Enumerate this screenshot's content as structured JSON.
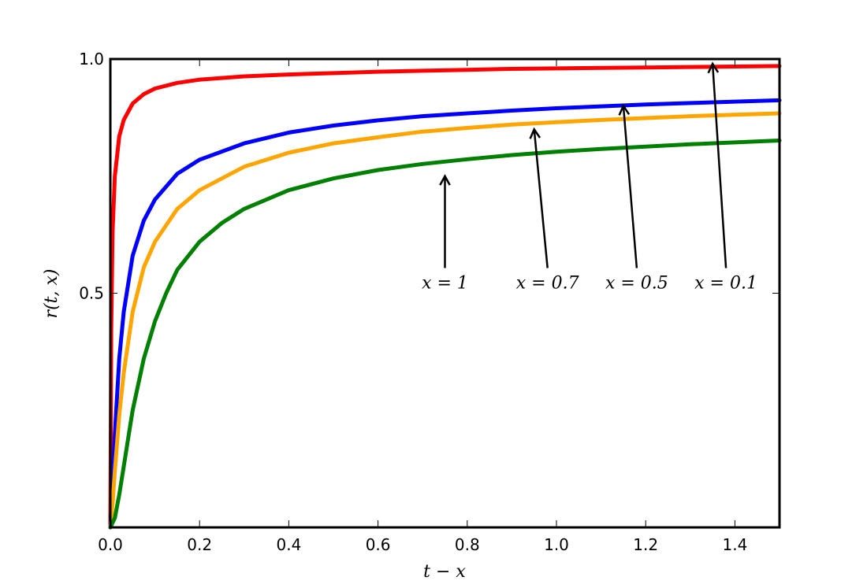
{
  "chart_data": {
    "type": "line",
    "title": "",
    "xlabel": "t − x",
    "ylabel": "r(t, x)",
    "xlim": [
      0.0,
      1.5
    ],
    "ylim": [
      0.0,
      1.0
    ],
    "xticks": [
      "0.0",
      "0.2",
      "0.4",
      "0.6",
      "0.8",
      "1.0",
      "1.2",
      "1.4"
    ],
    "yticks": [
      "0.5",
      "1.0"
    ],
    "grid": false,
    "series": [
      {
        "color": "#ff0000",
        "x": [
          0.0,
          0.002,
          0.005,
          0.01,
          0.02,
          0.03,
          0.05,
          0.075,
          0.1,
          0.15,
          0.2,
          0.3,
          0.4,
          0.5,
          0.6,
          0.7,
          0.8,
          0.9,
          1.0,
          1.1,
          1.2,
          1.3,
          1.4,
          1.5
        ],
        "values": [
          0.0,
          0.42,
          0.63,
          0.75,
          0.835,
          0.87,
          0.905,
          0.925,
          0.937,
          0.949,
          0.956,
          0.963,
          0.967,
          0.97,
          0.973,
          0.975,
          0.977,
          0.979,
          0.98,
          0.981,
          0.982,
          0.983,
          0.984,
          0.985
        ]
      },
      {
        "color": "#0000ff",
        "x": [
          0.0,
          0.005,
          0.01,
          0.02,
          0.03,
          0.05,
          0.075,
          0.1,
          0.15,
          0.2,
          0.3,
          0.4,
          0.5,
          0.6,
          0.7,
          0.8,
          0.9,
          1.0,
          1.1,
          1.2,
          1.3,
          1.4,
          1.5
        ],
        "values": [
          0.0,
          0.1,
          0.2,
          0.36,
          0.46,
          0.58,
          0.655,
          0.7,
          0.755,
          0.785,
          0.82,
          0.843,
          0.858,
          0.869,
          0.878,
          0.884,
          0.89,
          0.895,
          0.899,
          0.903,
          0.906,
          0.909,
          0.912
        ]
      },
      {
        "color": "#ffa500",
        "x": [
          0.0,
          0.005,
          0.01,
          0.02,
          0.03,
          0.05,
          0.075,
          0.1,
          0.15,
          0.2,
          0.3,
          0.4,
          0.5,
          0.6,
          0.7,
          0.8,
          0.9,
          1.0,
          1.1,
          1.2,
          1.3,
          1.4,
          1.5
        ],
        "values": [
          0.0,
          0.05,
          0.12,
          0.24,
          0.33,
          0.46,
          0.555,
          0.61,
          0.68,
          0.72,
          0.77,
          0.8,
          0.82,
          0.833,
          0.845,
          0.853,
          0.86,
          0.865,
          0.87,
          0.874,
          0.878,
          0.881,
          0.884
        ]
      },
      {
        "color": "#008000",
        "x": [
          0.0,
          0.01,
          0.02,
          0.03,
          0.04,
          0.05,
          0.075,
          0.1,
          0.125,
          0.15,
          0.2,
          0.25,
          0.3,
          0.4,
          0.5,
          0.6,
          0.7,
          0.8,
          0.9,
          1.0,
          1.1,
          1.2,
          1.3,
          1.4,
          1.5
        ],
        "values": [
          0.0,
          0.02,
          0.07,
          0.13,
          0.19,
          0.25,
          0.36,
          0.44,
          0.5,
          0.55,
          0.61,
          0.65,
          0.68,
          0.72,
          0.745,
          0.763,
          0.776,
          0.786,
          0.795,
          0.802,
          0.808,
          0.813,
          0.818,
          0.822,
          0.826
        ]
      }
    ],
    "annotations": [
      {
        "text": "x = 1",
        "x": 0.75,
        "y": 0.75,
        "text_x": 0.75,
        "text_y": 0.51
      },
      {
        "text": "x = 0.7",
        "x": 0.95,
        "y": 0.85,
        "text_x": 0.98,
        "text_y": 0.51
      },
      {
        "text": "x = 0.5",
        "x": 1.15,
        "y": 0.9,
        "text_x": 1.18,
        "text_y": 0.51
      },
      {
        "text": "x = 0.1",
        "x": 1.35,
        "y": 0.99,
        "text_x": 1.38,
        "text_y": 0.51
      }
    ]
  }
}
